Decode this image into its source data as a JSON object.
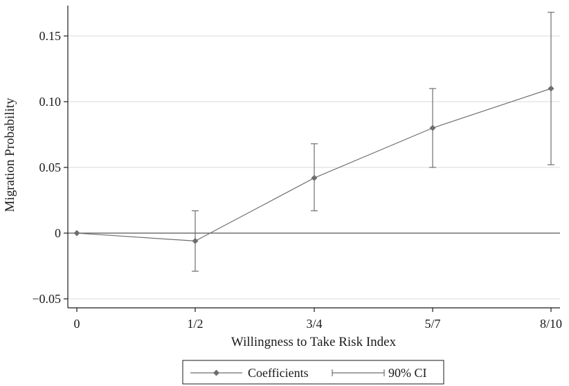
{
  "chart_data": {
    "type": "line",
    "title": "",
    "xlabel": "Willingness to Take Risk Index",
    "ylabel": "Migration Probability",
    "categories": [
      "0",
      "1/2",
      "3/4",
      "5/7",
      "8/10"
    ],
    "ylim": [
      -0.055,
      0.175
    ],
    "yticks": [
      -0.05,
      0,
      0.05,
      0.1,
      0.15
    ],
    "ytick_labels": [
      "−0.05",
      "0",
      "0.05",
      "0.10",
      "0.15"
    ],
    "grid": true,
    "zero_line": true,
    "series": [
      {
        "name": "Coefficients",
        "values": [
          0,
          -0.006,
          0.042,
          0.08,
          0.11
        ],
        "ci_lower": [
          null,
          -0.029,
          0.017,
          0.05,
          0.052
        ],
        "ci_upper": [
          null,
          0.017,
          0.068,
          0.11,
          0.168
        ]
      }
    ],
    "legend": {
      "position": "bottom",
      "entries": [
        "Coefficients",
        "90% CI"
      ]
    },
    "colors": {
      "series": "#6e6e6e",
      "grid": "#d9d9d9",
      "axis": "#1a1a1a",
      "zero": "#555555"
    }
  }
}
